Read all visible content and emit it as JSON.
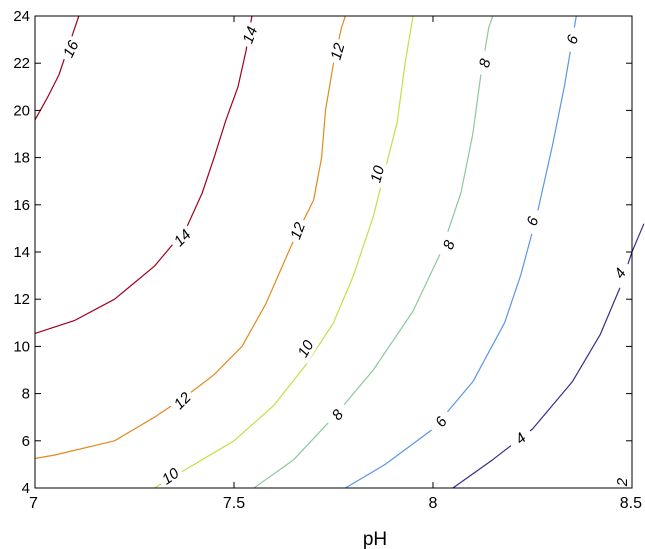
{
  "chart_data": {
    "type": "contour",
    "title": "",
    "xlabel": "pH",
    "ylabel": "",
    "xlim": [
      7,
      8.5
    ],
    "ylim": [
      4,
      24
    ],
    "xticks": [
      7,
      7.5,
      8,
      8.5
    ],
    "yticks": [
      4,
      6,
      8,
      10,
      12,
      14,
      16,
      18,
      20,
      22,
      24
    ],
    "grid": false,
    "contours": [
      {
        "level": 16,
        "color": "#a0001e",
        "points": [
          [
            7.0,
            19.6
          ],
          [
            7.03,
            20.5
          ],
          [
            7.06,
            21.5
          ],
          [
            7.08,
            22.5
          ],
          [
            7.1,
            23.5
          ],
          [
            7.11,
            24.0
          ]
        ],
        "labels": [
          {
            "text": "16",
            "x": 7.09,
            "y": 22.6,
            "angle": -65
          }
        ]
      },
      {
        "level": 14,
        "color": "#a0001e",
        "points": [
          [
            7.0,
            10.55
          ],
          [
            7.1,
            11.1
          ],
          [
            7.2,
            12.0
          ],
          [
            7.3,
            13.4
          ],
          [
            7.38,
            15.0
          ],
          [
            7.42,
            16.5
          ],
          [
            7.45,
            18.0
          ],
          [
            7.48,
            19.6
          ],
          [
            7.51,
            21.0
          ],
          [
            7.53,
            22.5
          ],
          [
            7.54,
            23.5
          ],
          [
            7.545,
            24.0
          ]
        ],
        "labels": [
          {
            "text": "14",
            "x": 7.37,
            "y": 14.6,
            "angle": -45
          },
          {
            "text": "14",
            "x": 7.54,
            "y": 23.2,
            "angle": -70
          }
        ]
      },
      {
        "level": 12,
        "color": "#e08a1e",
        "points": [
          [
            7.0,
            5.25
          ],
          [
            7.05,
            5.4
          ],
          [
            7.2,
            6.0
          ],
          [
            7.3,
            7.0
          ],
          [
            7.38,
            7.9
          ],
          [
            7.45,
            8.8
          ],
          [
            7.52,
            10.0
          ],
          [
            7.58,
            11.8
          ],
          [
            7.65,
            14.5
          ],
          [
            7.7,
            16.2
          ],
          [
            7.72,
            18.0
          ],
          [
            7.73,
            20.0
          ],
          [
            7.75,
            22.0
          ],
          [
            7.77,
            23.5
          ],
          [
            7.78,
            24.0
          ]
        ],
        "labels": [
          {
            "text": "12",
            "x": 7.37,
            "y": 7.7,
            "angle": -45
          },
          {
            "text": "12",
            "x": 7.66,
            "y": 14.9,
            "angle": -70
          },
          {
            "text": "12",
            "x": 7.76,
            "y": 22.5,
            "angle": -75
          }
        ]
      },
      {
        "level": 10,
        "color": "#c8dc46",
        "points": [
          [
            7.3,
            4.0
          ],
          [
            7.38,
            4.8
          ],
          [
            7.5,
            6.0
          ],
          [
            7.6,
            7.5
          ],
          [
            7.68,
            9.2
          ],
          [
            7.75,
            11.0
          ],
          [
            7.8,
            13.0
          ],
          [
            7.85,
            15.5
          ],
          [
            7.88,
            17.5
          ],
          [
            7.91,
            19.5
          ],
          [
            7.93,
            22.0
          ],
          [
            7.95,
            24.0
          ]
        ],
        "labels": [
          {
            "text": "10",
            "x": 7.34,
            "y": 4.5,
            "angle": -35
          },
          {
            "text": "10",
            "x": 7.68,
            "y": 9.9,
            "angle": -60
          },
          {
            "text": "10",
            "x": 7.86,
            "y": 17.3,
            "angle": -75
          }
        ]
      },
      {
        "level": 8,
        "color": "#8cc8a0",
        "points": [
          [
            7.55,
            4.0
          ],
          [
            7.65,
            5.2
          ],
          [
            7.75,
            7.0
          ],
          [
            7.85,
            9.0
          ],
          [
            7.95,
            11.5
          ],
          [
            8.02,
            14.0
          ],
          [
            8.07,
            16.5
          ],
          [
            8.1,
            19.0
          ],
          [
            8.12,
            21.5
          ],
          [
            8.14,
            23.5
          ],
          [
            8.15,
            24.0
          ]
        ],
        "labels": [
          {
            "text": "8",
            "x": 7.76,
            "y": 7.1,
            "angle": -50
          },
          {
            "text": "8",
            "x": 8.04,
            "y": 14.3,
            "angle": -70
          },
          {
            "text": "8",
            "x": 8.13,
            "y": 22.0,
            "angle": -75
          }
        ]
      },
      {
        "level": 6,
        "color": "#5a96e6",
        "points": [
          [
            7.78,
            4.0
          ],
          [
            7.88,
            5.0
          ],
          [
            8.0,
            6.5
          ],
          [
            8.1,
            8.5
          ],
          [
            8.18,
            11.0
          ],
          [
            8.22,
            13.0
          ],
          [
            8.26,
            15.5
          ],
          [
            8.3,
            18.5
          ],
          [
            8.33,
            21.0
          ],
          [
            8.35,
            23.0
          ],
          [
            8.36,
            24.0
          ]
        ],
        "labels": [
          {
            "text": "6",
            "x": 8.02,
            "y": 6.8,
            "angle": -55
          },
          {
            "text": "6",
            "x": 8.25,
            "y": 15.3,
            "angle": -70
          },
          {
            "text": "6",
            "x": 8.35,
            "y": 23.0,
            "angle": -70
          }
        ]
      },
      {
        "level": 4,
        "color": "#3c2a8c",
        "points": [
          [
            8.05,
            4.0
          ],
          [
            8.15,
            5.2
          ],
          [
            8.25,
            6.5
          ],
          [
            8.35,
            8.5
          ],
          [
            8.42,
            10.5
          ],
          [
            8.47,
            12.5
          ],
          [
            8.5,
            14.0
          ],
          [
            8.53,
            15.2
          ]
        ],
        "labels": [
          {
            "text": "4",
            "x": 8.22,
            "y": 6.1,
            "angle": -40
          },
          {
            "text": "4",
            "x": 8.47,
            "y": 13.1,
            "angle": -55
          }
        ]
      },
      {
        "level": 2,
        "color": "#3c2a8c",
        "points": [],
        "labels": [
          {
            "text": "2",
            "x": 8.475,
            "y": 4.25,
            "angle": -90
          }
        ]
      }
    ]
  }
}
